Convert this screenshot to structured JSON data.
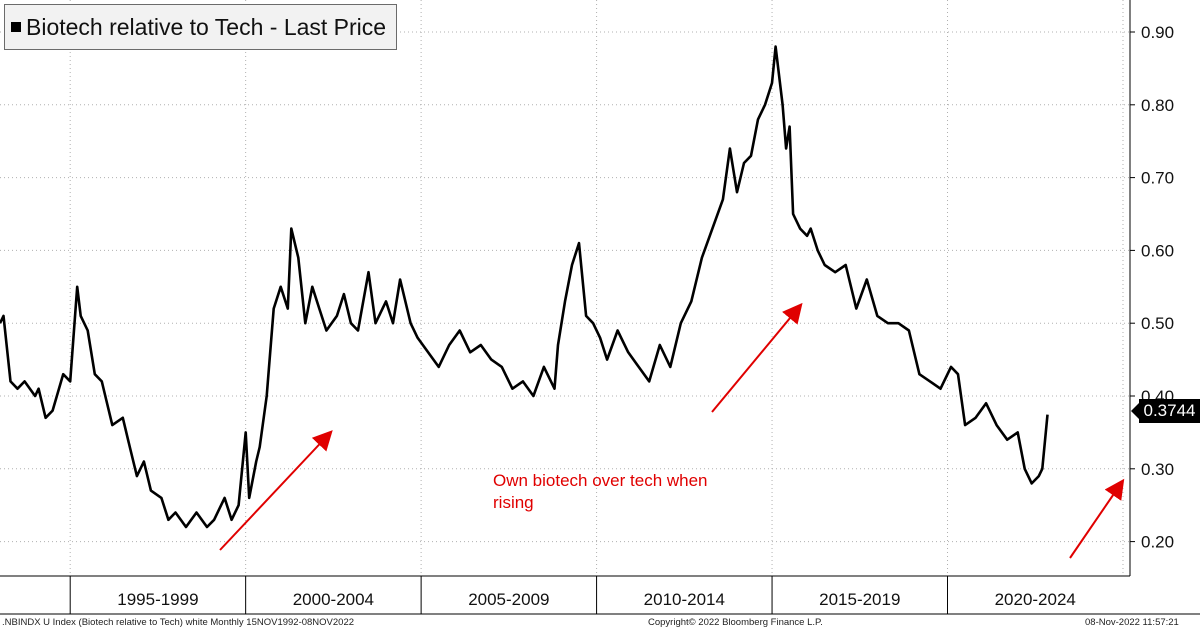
{
  "legend": {
    "label": "Biotech relative to Tech - Last Price",
    "color": "#000000"
  },
  "annotation": {
    "line1": "Own biotech over tech when",
    "line2": "rising",
    "color": "#e00000"
  },
  "last_price": {
    "label": "0.3744"
  },
  "footer": {
    "left": ".NBINDX U Index (Biotech relative to Tech) white  Monthly 15NOV1992-08NOV2022",
    "center": "Copyright© 2022 Bloomberg Finance L.P.",
    "right": "08-Nov-2022 11:57:21"
  },
  "chart_data": {
    "type": "line",
    "title": "Biotech relative to Tech - Last Price",
    "xlabel": "",
    "ylabel": "",
    "ylim": [
      0.15,
      0.93
    ],
    "y_ticks": [
      "0.90",
      "0.80",
      "0.70",
      "0.60",
      "0.50",
      "0.40",
      "0.30",
      "0.20"
    ],
    "y_tick_values": [
      0.9,
      0.8,
      0.7,
      0.6,
      0.5,
      0.4,
      0.3,
      0.2
    ],
    "y_axis_side": "right",
    "x_period_labels": [
      "1995-1999",
      "2000-2004",
      "2005-2009",
      "2010-2014",
      "2015-2019",
      "2020-2024"
    ],
    "x_range": [
      1993.0,
      2025.2
    ],
    "grid": true,
    "legend_position": "top-left",
    "last_value": 0.3744,
    "series": [
      {
        "name": "Biotech relative to Tech - Last Price",
        "color": "#000000",
        "x": [
          1993.0,
          1993.1,
          1993.3,
          1993.5,
          1993.7,
          1994.0,
          1994.1,
          1994.3,
          1994.5,
          1994.8,
          1995.0,
          1995.2,
          1995.3,
          1995.5,
          1995.7,
          1995.9,
          1996.0,
          1996.2,
          1996.5,
          1996.7,
          1996.9,
          1997.1,
          1997.3,
          1997.6,
          1997.8,
          1998.0,
          1998.3,
          1998.6,
          1998.9,
          1999.1,
          1999.4,
          1999.6,
          1999.8,
          2000.0,
          2000.1,
          2000.3,
          2000.4,
          2000.6,
          2000.8,
          2001.0,
          2001.2,
          2001.3,
          2001.5,
          2001.7,
          2001.9,
          2002.1,
          2002.3,
          2002.6,
          2002.8,
          2003.0,
          2003.2,
          2003.5,
          2003.7,
          2004.0,
          2004.2,
          2004.4,
          2004.7,
          2004.9,
          2005.2,
          2005.5,
          2005.8,
          2006.1,
          2006.4,
          2006.7,
          2007.0,
          2007.3,
          2007.6,
          2007.9,
          2008.2,
          2008.5,
          2008.8,
          2008.9,
          2009.1,
          2009.3,
          2009.5,
          2009.7,
          2009.9,
          2010.1,
          2010.3,
          2010.6,
          2010.9,
          2011.2,
          2011.5,
          2011.8,
          2012.1,
          2012.4,
          2012.7,
          2013.0,
          2013.3,
          2013.6,
          2013.8,
          2014.0,
          2014.2,
          2014.4,
          2014.6,
          2014.8,
          2015.0,
          2015.1,
          2015.3,
          2015.4,
          2015.5,
          2015.6,
          2015.8,
          2016.0,
          2016.1,
          2016.3,
          2016.5,
          2016.8,
          2017.1,
          2017.4,
          2017.7,
          2018.0,
          2018.3,
          2018.6,
          2018.9,
          2019.2,
          2019.5,
          2019.8,
          2020.1,
          2020.3,
          2020.5,
          2020.8,
          2021.1,
          2021.4,
          2021.7,
          2022.0,
          2022.2,
          2022.4,
          2022.6,
          2022.7,
          2022.85
        ],
        "y": [
          0.5,
          0.51,
          0.42,
          0.41,
          0.42,
          0.4,
          0.41,
          0.37,
          0.38,
          0.43,
          0.42,
          0.55,
          0.51,
          0.49,
          0.43,
          0.42,
          0.4,
          0.36,
          0.37,
          0.33,
          0.29,
          0.31,
          0.27,
          0.26,
          0.23,
          0.24,
          0.22,
          0.24,
          0.22,
          0.23,
          0.26,
          0.23,
          0.25,
          0.35,
          0.26,
          0.31,
          0.33,
          0.4,
          0.52,
          0.55,
          0.52,
          0.63,
          0.59,
          0.5,
          0.55,
          0.52,
          0.49,
          0.51,
          0.54,
          0.5,
          0.49,
          0.57,
          0.5,
          0.53,
          0.5,
          0.56,
          0.5,
          0.48,
          0.46,
          0.44,
          0.47,
          0.49,
          0.46,
          0.47,
          0.45,
          0.44,
          0.41,
          0.42,
          0.4,
          0.44,
          0.41,
          0.47,
          0.53,
          0.58,
          0.61,
          0.51,
          0.5,
          0.48,
          0.45,
          0.49,
          0.46,
          0.44,
          0.42,
          0.47,
          0.44,
          0.5,
          0.53,
          0.59,
          0.63,
          0.67,
          0.74,
          0.68,
          0.72,
          0.73,
          0.78,
          0.8,
          0.83,
          0.88,
          0.8,
          0.74,
          0.77,
          0.65,
          0.63,
          0.62,
          0.63,
          0.6,
          0.58,
          0.57,
          0.58,
          0.52,
          0.56,
          0.51,
          0.5,
          0.5,
          0.49,
          0.43,
          0.42,
          0.41,
          0.44,
          0.43,
          0.36,
          0.37,
          0.39,
          0.36,
          0.34,
          0.35,
          0.3,
          0.28,
          0.29,
          0.3,
          0.3744
        ]
      }
    ]
  }
}
